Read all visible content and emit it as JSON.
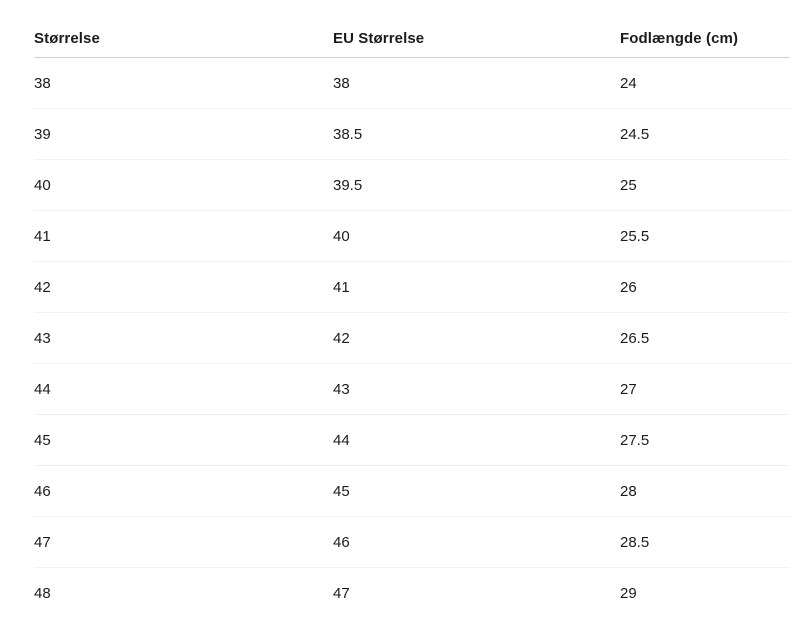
{
  "page": {
    "background": "#ffffff"
  },
  "colors": {
    "text": "#1c1c1c",
    "header_border": "#d1cfcd",
    "row_border": "#f2f1ef"
  },
  "table": {
    "name": "shoe-size-conversion-table",
    "columns": [
      "Størrelse",
      "EU Størrelse",
      "Fodlængde (cm)"
    ],
    "rows": [
      [
        "38",
        "38",
        "24"
      ],
      [
        "39",
        "38.5",
        "24.5"
      ],
      [
        "40",
        "39.5",
        "25"
      ],
      [
        "41",
        "40",
        "25.5"
      ],
      [
        "42",
        "41",
        "26"
      ],
      [
        "43",
        "42",
        "26.5"
      ],
      [
        "44",
        "43",
        "27"
      ],
      [
        "45",
        "44",
        "27.5"
      ],
      [
        "46",
        "45",
        "28"
      ],
      [
        "47",
        "46",
        "28.5"
      ],
      [
        "48",
        "47",
        "29"
      ]
    ]
  },
  "chart_data": {
    "type": "table",
    "title": "",
    "columns": [
      "Størrelse",
      "EU Størrelse",
      "Fodlængde (cm)"
    ],
    "rows": [
      [
        38,
        38,
        24
      ],
      [
        39,
        38.5,
        24.5
      ],
      [
        40,
        39.5,
        25
      ],
      [
        41,
        40,
        25.5
      ],
      [
        42,
        41,
        26
      ],
      [
        43,
        42,
        26.5
      ],
      [
        44,
        43,
        27
      ],
      [
        45,
        44,
        27.5
      ],
      [
        46,
        45,
        28
      ],
      [
        47,
        46,
        28.5
      ],
      [
        48,
        47,
        29
      ]
    ]
  }
}
